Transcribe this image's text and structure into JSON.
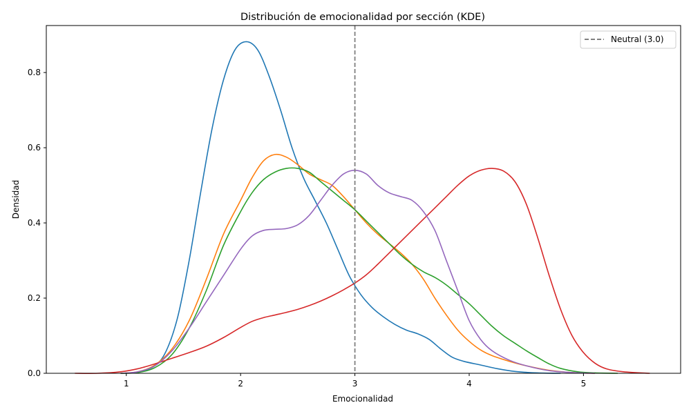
{
  "chart_data": {
    "type": "line",
    "title": "Distribución de emocionalidad por sección (KDE)",
    "xlabel": "Emocionalidad",
    "ylabel": "Densidad",
    "xlim": [
      0.3,
      5.85
    ],
    "ylim": [
      0,
      0.925
    ],
    "xticks": [
      1,
      2,
      3,
      4,
      5
    ],
    "yticks": [
      0.0,
      0.2,
      0.4,
      0.6,
      0.8
    ],
    "xtick_labels": [
      "1",
      "2",
      "3",
      "4",
      "5"
    ],
    "ytick_labels": [
      "0.0",
      "0.2",
      "0.4",
      "0.6",
      "0.8"
    ],
    "grid": false,
    "legend": {
      "position": "top-right",
      "entries": [
        "Neutral (3.0)"
      ]
    },
    "reference_line": {
      "x": 3.0,
      "label": "Neutral (3.0)",
      "color": "#808080",
      "style": "dashed"
    },
    "series": [
      {
        "color": "#1f77b4",
        "points": [
          [
            0.95,
            0.0
          ],
          [
            1.1,
            0.003
          ],
          [
            1.25,
            0.02
          ],
          [
            1.35,
            0.06
          ],
          [
            1.45,
            0.15
          ],
          [
            1.55,
            0.3
          ],
          [
            1.65,
            0.48
          ],
          [
            1.75,
            0.65
          ],
          [
            1.85,
            0.78
          ],
          [
            1.95,
            0.86
          ],
          [
            2.05,
            0.882
          ],
          [
            2.15,
            0.86
          ],
          [
            2.25,
            0.79
          ],
          [
            2.35,
            0.7
          ],
          [
            2.45,
            0.6
          ],
          [
            2.55,
            0.52
          ],
          [
            2.65,
            0.46
          ],
          [
            2.75,
            0.4
          ],
          [
            2.85,
            0.33
          ],
          [
            2.95,
            0.26
          ],
          [
            3.05,
            0.21
          ],
          [
            3.15,
            0.175
          ],
          [
            3.25,
            0.15
          ],
          [
            3.35,
            0.13
          ],
          [
            3.45,
            0.115
          ],
          [
            3.55,
            0.105
          ],
          [
            3.65,
            0.09
          ],
          [
            3.75,
            0.065
          ],
          [
            3.85,
            0.043
          ],
          [
            3.95,
            0.032
          ],
          [
            4.1,
            0.022
          ],
          [
            4.25,
            0.012
          ],
          [
            4.4,
            0.005
          ],
          [
            4.6,
            0.001
          ],
          [
            4.8,
            0.0
          ]
        ]
      },
      {
        "color": "#ff7f0e",
        "points": [
          [
            0.95,
            0.0
          ],
          [
            1.1,
            0.004
          ],
          [
            1.25,
            0.022
          ],
          [
            1.4,
            0.065
          ],
          [
            1.55,
            0.14
          ],
          [
            1.7,
            0.25
          ],
          [
            1.85,
            0.37
          ],
          [
            2.0,
            0.46
          ],
          [
            2.1,
            0.52
          ],
          [
            2.2,
            0.565
          ],
          [
            2.3,
            0.582
          ],
          [
            2.4,
            0.575
          ],
          [
            2.5,
            0.555
          ],
          [
            2.6,
            0.53
          ],
          [
            2.7,
            0.515
          ],
          [
            2.8,
            0.5
          ],
          [
            2.9,
            0.47
          ],
          [
            3.0,
            0.435
          ],
          [
            3.1,
            0.4
          ],
          [
            3.2,
            0.37
          ],
          [
            3.3,
            0.345
          ],
          [
            3.4,
            0.32
          ],
          [
            3.5,
            0.29
          ],
          [
            3.6,
            0.25
          ],
          [
            3.7,
            0.2
          ],
          [
            3.8,
            0.155
          ],
          [
            3.9,
            0.115
          ],
          [
            4.0,
            0.085
          ],
          [
            4.1,
            0.062
          ],
          [
            4.2,
            0.047
          ],
          [
            4.35,
            0.032
          ],
          [
            4.5,
            0.02
          ],
          [
            4.7,
            0.008
          ],
          [
            4.9,
            0.002
          ],
          [
            5.1,
            0.0
          ]
        ]
      },
      {
        "color": "#2ca02c",
        "points": [
          [
            0.95,
            0.0
          ],
          [
            1.1,
            0.002
          ],
          [
            1.25,
            0.015
          ],
          [
            1.4,
            0.05
          ],
          [
            1.55,
            0.12
          ],
          [
            1.7,
            0.22
          ],
          [
            1.85,
            0.34
          ],
          [
            2.0,
            0.43
          ],
          [
            2.1,
            0.48
          ],
          [
            2.2,
            0.515
          ],
          [
            2.3,
            0.535
          ],
          [
            2.4,
            0.545
          ],
          [
            2.5,
            0.545
          ],
          [
            2.6,
            0.535
          ],
          [
            2.7,
            0.51
          ],
          [
            2.8,
            0.485
          ],
          [
            2.9,
            0.46
          ],
          [
            3.0,
            0.435
          ],
          [
            3.1,
            0.405
          ],
          [
            3.2,
            0.375
          ],
          [
            3.3,
            0.345
          ],
          [
            3.4,
            0.315
          ],
          [
            3.5,
            0.29
          ],
          [
            3.6,
            0.27
          ],
          [
            3.7,
            0.255
          ],
          [
            3.8,
            0.235
          ],
          [
            3.9,
            0.21
          ],
          [
            4.0,
            0.185
          ],
          [
            4.1,
            0.155
          ],
          [
            4.2,
            0.125
          ],
          [
            4.3,
            0.1
          ],
          [
            4.4,
            0.08
          ],
          [
            4.5,
            0.06
          ],
          [
            4.6,
            0.042
          ],
          [
            4.7,
            0.025
          ],
          [
            4.8,
            0.013
          ],
          [
            4.95,
            0.004
          ],
          [
            5.1,
            0.001
          ],
          [
            5.3,
            0.0
          ]
        ]
      },
      {
        "color": "#d62728",
        "points": [
          [
            0.55,
            0.0
          ],
          [
            0.75,
            0.0
          ],
          [
            0.95,
            0.004
          ],
          [
            1.1,
            0.012
          ],
          [
            1.25,
            0.025
          ],
          [
            1.4,
            0.04
          ],
          [
            1.55,
            0.055
          ],
          [
            1.7,
            0.072
          ],
          [
            1.85,
            0.095
          ],
          [
            2.0,
            0.122
          ],
          [
            2.1,
            0.138
          ],
          [
            2.2,
            0.148
          ],
          [
            2.3,
            0.155
          ],
          [
            2.4,
            0.162
          ],
          [
            2.5,
            0.17
          ],
          [
            2.6,
            0.18
          ],
          [
            2.7,
            0.192
          ],
          [
            2.8,
            0.206
          ],
          [
            2.9,
            0.222
          ],
          [
            3.0,
            0.24
          ],
          [
            3.1,
            0.262
          ],
          [
            3.2,
            0.29
          ],
          [
            3.3,
            0.32
          ],
          [
            3.4,
            0.35
          ],
          [
            3.5,
            0.38
          ],
          [
            3.6,
            0.41
          ],
          [
            3.7,
            0.44
          ],
          [
            3.8,
            0.47
          ],
          [
            3.9,
            0.5
          ],
          [
            4.0,
            0.525
          ],
          [
            4.1,
            0.54
          ],
          [
            4.2,
            0.545
          ],
          [
            4.3,
            0.538
          ],
          [
            4.4,
            0.51
          ],
          [
            4.5,
            0.45
          ],
          [
            4.6,
            0.36
          ],
          [
            4.7,
            0.26
          ],
          [
            4.8,
            0.17
          ],
          [
            4.9,
            0.1
          ],
          [
            5.0,
            0.055
          ],
          [
            5.1,
            0.027
          ],
          [
            5.2,
            0.012
          ],
          [
            5.35,
            0.004
          ],
          [
            5.58,
            0.0
          ]
        ]
      },
      {
        "color": "#9467bd",
        "points": [
          [
            0.95,
            0.0
          ],
          [
            1.1,
            0.004
          ],
          [
            1.25,
            0.02
          ],
          [
            1.4,
            0.06
          ],
          [
            1.55,
            0.12
          ],
          [
            1.7,
            0.19
          ],
          [
            1.85,
            0.26
          ],
          [
            2.0,
            0.33
          ],
          [
            2.1,
            0.365
          ],
          [
            2.2,
            0.38
          ],
          [
            2.3,
            0.383
          ],
          [
            2.4,
            0.385
          ],
          [
            2.5,
            0.395
          ],
          [
            2.6,
            0.42
          ],
          [
            2.7,
            0.46
          ],
          [
            2.8,
            0.5
          ],
          [
            2.9,
            0.53
          ],
          [
            3.0,
            0.54
          ],
          [
            3.1,
            0.53
          ],
          [
            3.2,
            0.5
          ],
          [
            3.3,
            0.48
          ],
          [
            3.4,
            0.47
          ],
          [
            3.5,
            0.46
          ],
          [
            3.6,
            0.43
          ],
          [
            3.7,
            0.38
          ],
          [
            3.8,
            0.3
          ],
          [
            3.9,
            0.22
          ],
          [
            4.0,
            0.14
          ],
          [
            4.1,
            0.09
          ],
          [
            4.2,
            0.06
          ],
          [
            4.35,
            0.035
          ],
          [
            4.5,
            0.02
          ],
          [
            4.7,
            0.007
          ],
          [
            4.9,
            0.002
          ],
          [
            5.1,
            0.0
          ]
        ]
      }
    ]
  }
}
